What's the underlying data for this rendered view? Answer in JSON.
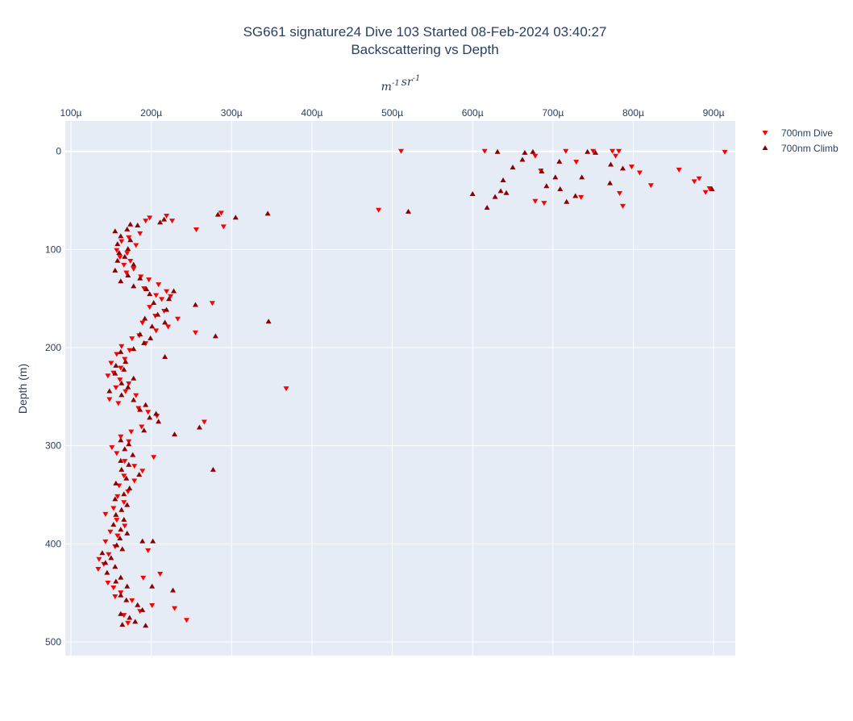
{
  "chart_data": {
    "type": "scatter",
    "title": [
      "SG661 signature24 Dive 103 Started 08-Feb-2024 03:40:27",
      "Backscattering vs Depth"
    ],
    "x_axis_title": "m^-1 sr^-1",
    "y_axis_title": "Depth (m)",
    "x_range": [
      9.3e-05,
      0.000927
    ],
    "y_range": [
      514,
      -31
    ],
    "x_axis_side": "top",
    "y_reversed": true,
    "x_ticks": [
      {
        "value": 0.0001,
        "label": "100µ"
      },
      {
        "value": 0.0002,
        "label": "200µ"
      },
      {
        "value": 0.0003,
        "label": "300µ"
      },
      {
        "value": 0.0004,
        "label": "400µ"
      },
      {
        "value": 0.0005,
        "label": "500µ"
      },
      {
        "value": 0.0006,
        "label": "600µ"
      },
      {
        "value": 0.0007,
        "label": "700µ"
      },
      {
        "value": 0.0008,
        "label": "800µ"
      },
      {
        "value": 0.0009,
        "label": "900µ"
      }
    ],
    "y_ticks": [
      {
        "value": 0,
        "label": "0"
      },
      {
        "value": 100,
        "label": "100"
      },
      {
        "value": 200,
        "label": "200"
      },
      {
        "value": 300,
        "label": "300"
      },
      {
        "value": 400,
        "label": "400"
      },
      {
        "value": 500,
        "label": "500"
      }
    ],
    "grid": true,
    "legend_position": "top-right outside plot",
    "series": [
      {
        "name": "700nm Dive",
        "color": "#ff0000",
        "marker": "triangle-down",
        "points": [
          [
            0.000914,
            1
          ],
          [
            0.000895,
            38
          ],
          [
            0.00089,
            42
          ],
          [
            0.000882,
            28
          ],
          [
            0.000876,
            31
          ],
          [
            0.000857,
            19
          ],
          [
            0.000822,
            35
          ],
          [
            0.000808,
            22
          ],
          [
            0.000798,
            16
          ],
          [
            0.000787,
            56
          ],
          [
            0.000783,
            43
          ],
          [
            0.000782,
            0
          ],
          [
            0.000778,
            5
          ],
          [
            0.000774,
            0
          ],
          [
            0.00075,
            0
          ],
          [
            0.000735,
            47
          ],
          [
            0.000729,
            11
          ],
          [
            0.000716,
            0
          ],
          [
            0.000689,
            53
          ],
          [
            0.000685,
            20
          ],
          [
            0.000678,
            51
          ],
          [
            0.000678,
            5
          ],
          [
            0.000615,
            0
          ],
          [
            0.000511,
            0
          ],
          [
            0.000483,
            60
          ],
          [
            0.00029,
            77
          ],
          [
            0.000287,
            63
          ],
          [
            0.000256,
            80
          ],
          [
            0.000226,
            71
          ],
          [
            0.000219,
            66
          ],
          [
            0.000198,
            68
          ],
          [
            0.000193,
            71
          ],
          [
            0.000186,
            84
          ],
          [
            0.000172,
            88
          ],
          [
            0.000163,
            92
          ],
          [
            0.000181,
            96
          ],
          [
            0.000157,
            101
          ],
          [
            0.00017,
            104
          ],
          [
            0.000161,
            108
          ],
          [
            0.000174,
            112
          ],
          [
            0.000166,
            116
          ],
          [
            0.000178,
            120
          ],
          [
            0.000169,
            124
          ],
          [
            0.000187,
            128
          ],
          [
            0.000197,
            131
          ],
          [
            0.000209,
            136
          ],
          [
            0.000191,
            140
          ],
          [
            0.000219,
            143
          ],
          [
            0.000206,
            147
          ],
          [
            0.000213,
            151
          ],
          [
            0.000224,
            148
          ],
          [
            0.000276,
            155
          ],
          [
            0.000198,
            159
          ],
          [
            0.000216,
            163
          ],
          [
            0.000205,
            168
          ],
          [
            0.000233,
            171
          ],
          [
            0.000189,
            175
          ],
          [
            0.000221,
            179
          ],
          [
            0.000206,
            183
          ],
          [
            0.000255,
            185
          ],
          [
            0.000185,
            188
          ],
          [
            0.000176,
            191
          ],
          [
            0.000193,
            196
          ],
          [
            0.000163,
            199
          ],
          [
            0.000173,
            203
          ],
          [
            0.000157,
            207
          ],
          [
            0.000167,
            212
          ],
          [
            0.00015,
            216
          ],
          [
            0.000162,
            221
          ],
          [
            0.000153,
            226
          ],
          [
            0.000146,
            229
          ],
          [
            0.000161,
            233
          ],
          [
            0.000172,
            237
          ],
          [
            0.000156,
            241
          ],
          [
            0.000368,
            242
          ],
          [
            0.000168,
            245
          ],
          [
            0.000181,
            249
          ],
          [
            0.000148,
            253
          ],
          [
            0.000159,
            257
          ],
          [
            0.000184,
            262
          ],
          [
            0.000196,
            266
          ],
          [
            0.000207,
            270
          ],
          [
            0.000266,
            276
          ],
          [
            0.000188,
            281
          ],
          [
            0.000175,
            286
          ],
          [
            0.000162,
            291
          ],
          [
            0.000172,
            296
          ],
          [
            0.000151,
            302
          ],
          [
            0.000157,
            308
          ],
          [
            0.000203,
            312
          ],
          [
            0.000167,
            316
          ],
          [
            0.000179,
            321
          ],
          [
            0.000189,
            326
          ],
          [
            0.000166,
            331
          ],
          [
            0.000179,
            336
          ],
          [
            0.00016,
            341
          ],
          [
            0.000171,
            347
          ],
          [
            0.000158,
            352
          ],
          [
            0.000166,
            358
          ],
          [
            0.000153,
            364
          ],
          [
            0.000143,
            370
          ],
          [
            0.000157,
            376
          ],
          [
            0.000167,
            382
          ],
          [
            0.000149,
            388
          ],
          [
            0.000158,
            392
          ],
          [
            0.000143,
            398
          ],
          [
            0.000155,
            403
          ],
          [
            0.000196,
            407
          ],
          [
            0.000147,
            411
          ],
          [
            0.000135,
            416
          ],
          [
            0.000141,
            421
          ],
          [
            0.000134,
            426
          ],
          [
            0.000211,
            431
          ],
          [
            0.00019,
            435
          ],
          [
            0.000146,
            440
          ],
          [
            0.000153,
            445
          ],
          [
            0.000162,
            450
          ],
          [
            0.000155,
            454
          ],
          [
            0.000176,
            458
          ],
          [
            0.000201,
            463
          ],
          [
            0.000229,
            466
          ],
          [
            0.000186,
            469
          ],
          [
            0.000166,
            473
          ],
          [
            0.000244,
            478
          ],
          [
            0.000171,
            481
          ]
        ]
      },
      {
        "name": "700nm Climb",
        "color": "#8b0000",
        "marker": "triangle-up",
        "points": [
          [
            0.000898,
            38
          ],
          [
            0.000787,
            17
          ],
          [
            0.000771,
            32
          ],
          [
            0.000753,
            1
          ],
          [
            0.000772,
            13
          ],
          [
            0.000736,
            26
          ],
          [
            0.000728,
            45
          ],
          [
            0.000717,
            51
          ],
          [
            0.000708,
            10
          ],
          [
            0.000686,
            20
          ],
          [
            0.000675,
            0
          ],
          [
            0.000662,
            8
          ],
          [
            0.00065,
            16
          ],
          [
            0.000635,
            40
          ],
          [
            0.000642,
            42
          ],
          [
            0.000628,
            46
          ],
          [
            0.000631,
            0
          ],
          [
            0.000638,
            29
          ],
          [
            0.000618,
            57
          ],
          [
            0.0006,
            43
          ],
          [
            0.000665,
            1
          ],
          [
            0.000692,
            35
          ],
          [
            0.000703,
            26
          ],
          [
            0.000709,
            38
          ],
          [
            0.000743,
            0
          ],
          [
            0.00052,
            61
          ],
          [
            0.000345,
            63
          ],
          [
            0.000305,
            67
          ],
          [
            0.000283,
            64
          ],
          [
            0.000216,
            69
          ],
          [
            0.000211,
            72
          ],
          [
            0.000183,
            75
          ],
          [
            0.000174,
            74
          ],
          [
            0.00017,
            79
          ],
          [
            0.000155,
            81
          ],
          [
            0.000162,
            86
          ],
          [
            0.000174,
            90
          ],
          [
            0.000158,
            94
          ],
          [
            0.000171,
            99
          ],
          [
            0.00016,
            103
          ],
          [
            0.000167,
            107
          ],
          [
            0.000158,
            111
          ],
          [
            0.000178,
            115
          ],
          [
            0.000155,
            121
          ],
          [
            0.000171,
            126
          ],
          [
            0.000186,
            129
          ],
          [
            0.000162,
            132
          ],
          [
            0.000178,
            137
          ],
          [
            0.000194,
            140
          ],
          [
            0.000228,
            142
          ],
          [
            0.000198,
            145
          ],
          [
            0.000222,
            150
          ],
          [
            0.000203,
            154
          ],
          [
            0.000255,
            156
          ],
          [
            0.000219,
            161
          ],
          [
            0.000208,
            166
          ],
          [
            0.000192,
            170
          ],
          [
            0.000346,
            173
          ],
          [
            0.000217,
            174
          ],
          [
            0.000201,
            178
          ],
          [
            0.00028,
            188
          ],
          [
            0.000186,
            186
          ],
          [
            0.000199,
            190
          ],
          [
            0.000191,
            195
          ],
          [
            0.000178,
            201
          ],
          [
            0.000162,
            204
          ],
          [
            0.000217,
            209
          ],
          [
            0.000168,
            214
          ],
          [
            0.000156,
            218
          ],
          [
            0.000166,
            222
          ],
          [
            0.000155,
            226
          ],
          [
            0.000178,
            231
          ],
          [
            0.000163,
            236
          ],
          [
            0.000171,
            240
          ],
          [
            0.000148,
            244
          ],
          [
            0.000163,
            248
          ],
          [
            0.000178,
            253
          ],
          [
            0.000193,
            258
          ],
          [
            0.000186,
            263
          ],
          [
            0.000206,
            267
          ],
          [
            0.000198,
            271
          ],
          [
            0.000209,
            275
          ],
          [
            0.00026,
            281
          ],
          [
            0.000191,
            284
          ],
          [
            0.000229,
            288
          ],
          [
            0.000162,
            294
          ],
          [
            0.000172,
            298
          ],
          [
            0.000167,
            303
          ],
          [
            0.000177,
            309
          ],
          [
            0.000162,
            315
          ],
          [
            0.000172,
            319
          ],
          [
            0.000277,
            324
          ],
          [
            0.000163,
            324
          ],
          [
            0.000185,
            329
          ],
          [
            0.000169,
            333
          ],
          [
            0.000156,
            338
          ],
          [
            0.000173,
            343
          ],
          [
            0.000166,
            349
          ],
          [
            0.000155,
            354
          ],
          [
            0.00017,
            360
          ],
          [
            0.000163,
            365
          ],
          [
            0.000156,
            370
          ],
          [
            0.000166,
            375
          ],
          [
            0.000153,
            380
          ],
          [
            0.000162,
            385
          ],
          [
            0.00017,
            389
          ],
          [
            0.000161,
            394
          ],
          [
            0.000202,
            397
          ],
          [
            0.000189,
            397
          ],
          [
            0.000157,
            401
          ],
          [
            0.000164,
            405
          ],
          [
            0.000139,
            409
          ],
          [
            0.00015,
            414
          ],
          [
            0.000143,
            419
          ],
          [
            0.000155,
            423
          ],
          [
            0.000145,
            429
          ],
          [
            0.000162,
            434
          ],
          [
            0.000156,
            438
          ],
          [
            0.00017,
            443
          ],
          [
            0.000201,
            443
          ],
          [
            0.000227,
            447
          ],
          [
            0.000162,
            452
          ],
          [
            0.000169,
            457
          ],
          [
            0.000183,
            462
          ],
          [
            0.000189,
            467
          ],
          [
            0.000162,
            471
          ],
          [
            0.000173,
            475
          ],
          [
            0.00018,
            479
          ],
          [
            0.000164,
            482
          ],
          [
            0.000193,
            483
          ]
        ]
      }
    ]
  }
}
